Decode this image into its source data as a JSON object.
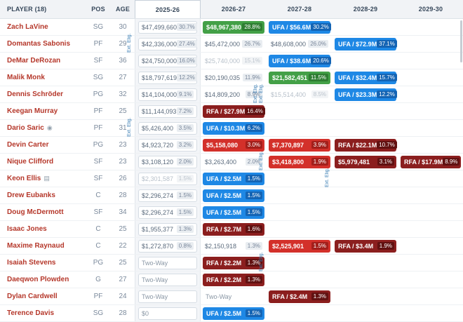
{
  "table": {
    "columns": [
      "PLAYER (18)",
      "POS",
      "AGE",
      "2025-26",
      "2026-27",
      "2027-28",
      "2028-29",
      "2029-30"
    ],
    "current_season": "2025-26",
    "player_count": 18
  },
  "legend_colors": {
    "player_option_green": "#43a047",
    "ufa_blue": "#1e88e5",
    "team_option_red": "#d3302a",
    "rfa_maroon": "#8b1e1e",
    "player_link_red": "#b5372a",
    "ext_elig_blue": "#3d7fb5"
  },
  "ext_elig_label": "Ext. Elig.",
  "ext_elig_markers": [
    {
      "row": 0,
      "col": 3,
      "count": 1
    },
    {
      "row": 3,
      "col": 5,
      "count": 2
    },
    {
      "row": 5,
      "col": 3,
      "count": 1
    },
    {
      "row": 7,
      "col": 5,
      "count": 1
    },
    {
      "row": 8,
      "col": 6,
      "count": 1
    },
    {
      "row": 13,
      "col": 5,
      "count": 1
    }
  ],
  "icon_glyphs": {
    "info-icon": "◉",
    "contract-note-icon": "▤"
  },
  "rows": [
    {
      "player": "Zach LaVine",
      "pos": "SG",
      "age": "30",
      "years": [
        {
          "text": "$47,499,660",
          "pct": "30.7%",
          "kind": "normal"
        },
        {
          "text": "$48,967,380",
          "pct": "28.8%",
          "kind": "player_option"
        },
        {
          "text": "UFA / $56.6M",
          "pct": "30.2%",
          "kind": "ufa"
        },
        null,
        null
      ]
    },
    {
      "player": "Domantas Sabonis",
      "pos": "PF",
      "age": "29",
      "years": [
        {
          "text": "$42,336,000",
          "pct": "27.4%",
          "kind": "normal"
        },
        {
          "text": "$45,472,000",
          "pct": "26.7%",
          "kind": "normal"
        },
        {
          "text": "$48,608,000",
          "pct": "26.0%",
          "kind": "normal"
        },
        {
          "text": "UFA / $72.9M",
          "pct": "37.1%",
          "kind": "ufa"
        },
        null
      ]
    },
    {
      "player": "DeMar DeRozan",
      "pos": "SF",
      "age": "36",
      "years": [
        {
          "text": "$24,750,000",
          "pct": "16.0%",
          "kind": "normal"
        },
        {
          "text": "$25,740,000",
          "pct": "15.1%",
          "kind": "muted"
        },
        {
          "text": "UFA / $38.6M",
          "pct": "20.6%",
          "kind": "ufa"
        },
        null,
        null
      ]
    },
    {
      "player": "Malik Monk",
      "pos": "SG",
      "age": "27",
      "years": [
        {
          "text": "$18,797,619",
          "pct": "12.2%",
          "kind": "normal"
        },
        {
          "text": "$20,190,035",
          "pct": "11.9%",
          "kind": "normal"
        },
        {
          "text": "$21,582,451",
          "pct": "11.5%",
          "kind": "player_option"
        },
        {
          "text": "UFA / $32.4M",
          "pct": "15.7%",
          "kind": "ufa"
        },
        null
      ]
    },
    {
      "player": "Dennis Schröder",
      "pos": "PG",
      "age": "32",
      "years": [
        {
          "text": "$14,104,000",
          "pct": "9.1%",
          "kind": "normal"
        },
        {
          "text": "$14,809,200",
          "pct": "8.9%",
          "kind": "normal"
        },
        {
          "text": "$15,514,400",
          "pct": "8.5%",
          "kind": "muted"
        },
        {
          "text": "UFA / $23.3M",
          "pct": "12.2%",
          "kind": "ufa"
        },
        null
      ]
    },
    {
      "player": "Keegan Murray",
      "pos": "PF",
      "age": "25",
      "years": [
        {
          "text": "$11,144,093",
          "pct": "7.2%",
          "kind": "normal"
        },
        {
          "text": "RFA / $27.9M",
          "pct": "16.4%",
          "kind": "rfa"
        },
        null,
        null,
        null
      ]
    },
    {
      "player": "Dario Saric",
      "icon": "info-icon",
      "pos": "PF",
      "age": "31",
      "years": [
        {
          "text": "$5,426,400",
          "pct": "3.5%",
          "kind": "normal"
        },
        {
          "text": "UFA / $10.3M",
          "pct": "6.2%",
          "kind": "ufa"
        },
        null,
        null,
        null
      ]
    },
    {
      "player": "Devin Carter",
      "pos": "PG",
      "age": "23",
      "years": [
        {
          "text": "$4,923,720",
          "pct": "3.2%",
          "kind": "normal"
        },
        {
          "text": "$5,158,080",
          "pct": "3.0%",
          "kind": "team_option"
        },
        {
          "text": "$7,370,897",
          "pct": "3.9%",
          "kind": "team_option"
        },
        {
          "text": "RFA / $22.1M",
          "pct": "10.7%",
          "kind": "rfa"
        },
        null
      ]
    },
    {
      "player": "Nique Clifford",
      "pos": "SF",
      "age": "23",
      "years": [
        {
          "text": "$3,108,120",
          "pct": "2.0%",
          "kind": "normal"
        },
        {
          "text": "$3,263,400",
          "pct": "2.0%",
          "kind": "normal"
        },
        {
          "text": "$3,418,800",
          "pct": "1.9%",
          "kind": "team_option"
        },
        {
          "text": "$5,979,481",
          "pct": "3.1%",
          "kind": "rfa"
        },
        {
          "text": "RFA / $17.9M",
          "pct": "8.9%",
          "kind": "rfa"
        }
      ]
    },
    {
      "player": "Keon Ellis",
      "icon": "contract-note-icon",
      "pos": "SF",
      "age": "26",
      "years": [
        {
          "text": "$2,301,587",
          "pct": "1.5%",
          "kind": "muted"
        },
        {
          "text": "UFA / $2.5M",
          "pct": "1.5%",
          "kind": "ufa"
        },
        null,
        null,
        null
      ]
    },
    {
      "player": "Drew Eubanks",
      "pos": "C",
      "age": "28",
      "years": [
        {
          "text": "$2,296,274",
          "pct": "1.5%",
          "kind": "normal"
        },
        {
          "text": "UFA / $2.5M",
          "pct": "1.5%",
          "kind": "ufa"
        },
        null,
        null,
        null
      ]
    },
    {
      "player": "Doug McDermott",
      "pos": "SF",
      "age": "34",
      "years": [
        {
          "text": "$2,296,274",
          "pct": "1.5%",
          "kind": "normal"
        },
        {
          "text": "UFA / $2.5M",
          "pct": "1.5%",
          "kind": "ufa"
        },
        null,
        null,
        null
      ]
    },
    {
      "player": "Isaac Jones",
      "pos": "C",
      "age": "25",
      "years": [
        {
          "text": "$1,955,377",
          "pct": "1.3%",
          "kind": "normal"
        },
        {
          "text": "RFA / $2.7M",
          "pct": "1.6%",
          "kind": "rfa"
        },
        null,
        null,
        null
      ]
    },
    {
      "player": "Maxime Raynaud",
      "pos": "C",
      "age": "22",
      "years": [
        {
          "text": "$1,272,870",
          "pct": "0.8%",
          "kind": "normal"
        },
        {
          "text": "$2,150,918",
          "pct": "1.3%",
          "kind": "normal"
        },
        {
          "text": "$2,525,901",
          "pct": "1.5%",
          "kind": "team_option"
        },
        {
          "text": "RFA / $3.4M",
          "pct": "1.9%",
          "kind": "rfa"
        },
        null
      ]
    },
    {
      "player": "Isaiah Stevens",
      "pos": "PG",
      "age": "25",
      "years": [
        {
          "text": "Two-Way",
          "kind": "twoway"
        },
        {
          "text": "RFA / $2.2M",
          "pct": "1.3%",
          "kind": "rfa"
        },
        null,
        null,
        null
      ]
    },
    {
      "player": "Daeqwon Plowden",
      "pos": "G",
      "age": "27",
      "years": [
        {
          "text": "Two-Way",
          "kind": "twoway"
        },
        {
          "text": "RFA / $2.2M",
          "pct": "1.3%",
          "kind": "rfa"
        },
        null,
        null,
        null
      ]
    },
    {
      "player": "Dylan Cardwell",
      "pos": "PF",
      "age": "24",
      "years": [
        {
          "text": "Two-Way",
          "kind": "twoway"
        },
        {
          "text": "Two-Way",
          "kind": "twoway"
        },
        {
          "text": "RFA / $2.4M",
          "pct": "1.3%",
          "kind": "rfa"
        },
        null,
        null
      ]
    },
    {
      "player": "Terence Davis",
      "pos": "SG",
      "age": "28",
      "years": [
        {
          "text": "$0",
          "kind": "zero"
        },
        {
          "text": "UFA / $2.5M",
          "pct": "1.5%",
          "kind": "ufa"
        },
        null,
        null,
        null
      ]
    }
  ]
}
